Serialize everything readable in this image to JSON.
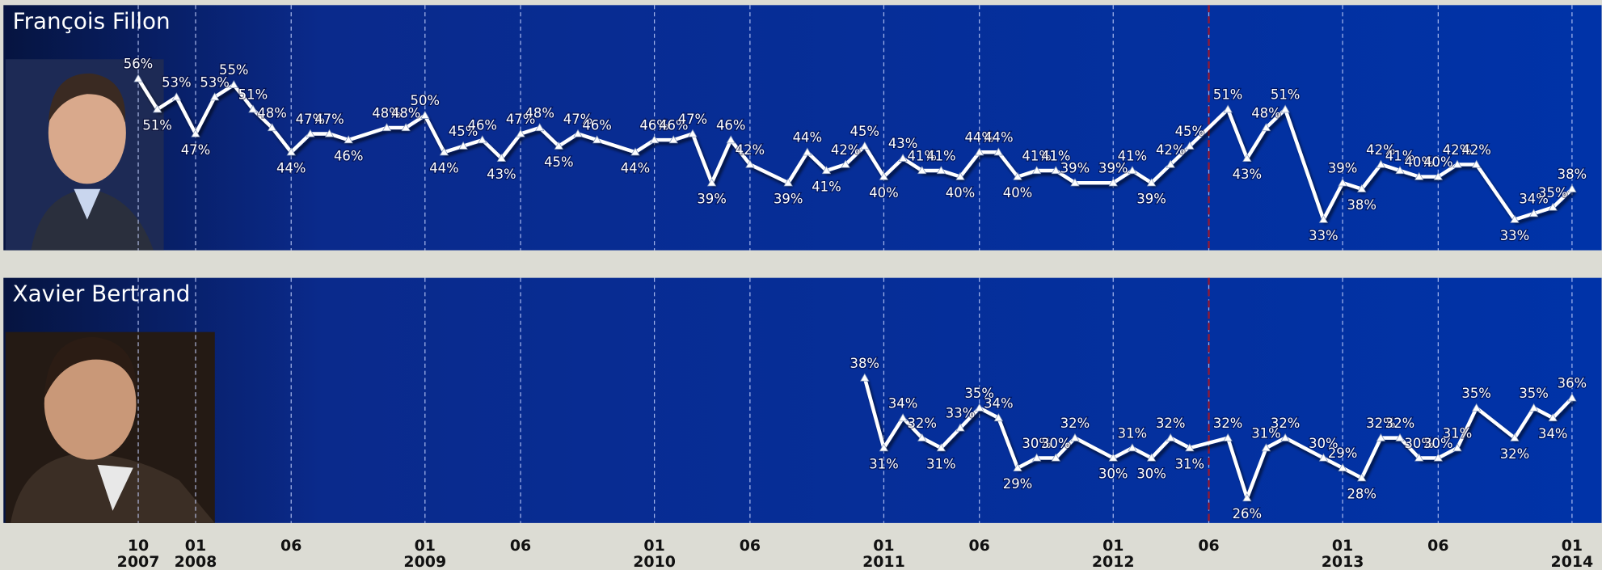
{
  "chart_data": [
    {
      "type": "line",
      "title": "François Fillon",
      "x": [
        "2007-10",
        "2007-11",
        "2007-12",
        "2008-01",
        "2008-02",
        "2008-03",
        "2008-04",
        "2008-05",
        "2008-06",
        "2008-07",
        "2008-08",
        "2008-09",
        "2008-11",
        "2008-12",
        "2009-01",
        "2009-02",
        "2009-03",
        "2009-04",
        "2009-05",
        "2009-06",
        "2009-07",
        "2009-08",
        "2009-09",
        "2009-10",
        "2009-12",
        "2010-01",
        "2010-02",
        "2010-03",
        "2010-04",
        "2010-05",
        "2010-06",
        "2010-08",
        "2010-09",
        "2010-10",
        "2010-11",
        "2010-12",
        "2011-01",
        "2011-02",
        "2011-03",
        "2011-04",
        "2011-05",
        "2011-06",
        "2011-07",
        "2011-08",
        "2011-09",
        "2011-10",
        "2011-11",
        "2012-01",
        "2012-02",
        "2012-03",
        "2012-04",
        "2012-05",
        "2012-07",
        "2012-08",
        "2012-09",
        "2012-10",
        "2012-12",
        "2013-01",
        "2013-02",
        "2013-03",
        "2013-04",
        "2013-05",
        "2013-06",
        "2013-07",
        "2013-08",
        "2013-10",
        "2013-11",
        "2013-12",
        "2014-01"
      ],
      "series": [
        {
          "color": "#ffffff",
          "values": [
            56,
            51,
            53,
            47,
            53,
            55,
            51,
            48,
            44,
            47,
            47,
            46,
            48,
            48,
            50,
            44,
            45,
            46,
            43,
            47,
            48,
            45,
            47,
            46,
            44,
            46,
            46,
            47,
            39,
            46,
            42,
            39,
            44,
            41,
            42,
            45,
            40,
            43,
            41,
            41,
            40,
            44,
            44,
            40,
            41,
            41,
            39,
            39,
            41,
            39,
            42,
            45,
            51,
            43,
            48,
            51,
            33,
            39,
            38,
            42,
            41,
            40,
            40,
            42,
            42,
            33,
            34,
            35,
            38
          ],
          "value_labels": [
            "56%",
            "51%",
            "53%",
            "47%",
            "53%",
            "55%",
            "51%",
            "48%",
            "44%",
            "47%",
            "47%",
            "46%",
            "48%",
            "48%",
            "50%",
            "44%",
            "45%",
            "46%",
            "43%",
            "47%",
            "48%",
            "45%",
            "47%",
            "46%",
            "44%",
            "46%",
            "46%",
            "47%",
            "39%",
            "46%",
            "42%",
            "39%",
            "44%",
            "41%",
            "42%",
            "45%",
            "40%",
            "43%",
            "41%",
            "41%",
            "40%",
            "44%",
            "44%",
            "40%",
            "41%",
            "41%",
            "39%",
            "39%",
            "41%",
            "39%",
            "42%",
            "45%",
            "51%",
            "43%",
            "48%",
            "51%",
            "33%",
            "39%",
            "38%",
            "42%",
            "41%",
            "40%",
            "40%",
            "42%",
            "42%",
            "33%",
            "34%",
            "35%",
            "38%"
          ]
        }
      ],
      "ylim": [
        28,
        68
      ],
      "xlim": [
        "2007-10",
        "2014-01"
      ],
      "vline": "2012-06",
      "vline_color": "#8b1a3a"
    },
    {
      "type": "line",
      "title": "Xavier Bertrand",
      "x": [
        "2010-12",
        "2011-01",
        "2011-02",
        "2011-03",
        "2011-04",
        "2011-05",
        "2011-06",
        "2011-07",
        "2011-08",
        "2011-09",
        "2011-10",
        "2011-11",
        "2012-01",
        "2012-02",
        "2012-03",
        "2012-04",
        "2012-05",
        "2012-07",
        "2012-08",
        "2012-09",
        "2012-10",
        "2012-12",
        "2013-01",
        "2013-02",
        "2013-03",
        "2013-04",
        "2013-05",
        "2013-06",
        "2013-07",
        "2013-08",
        "2013-10",
        "2013-11",
        "2013-12",
        "2014-01"
      ],
      "series": [
        {
          "color": "#ffffff",
          "values": [
            38,
            31,
            34,
            32,
            31,
            33,
            35,
            34,
            29,
            30,
            30,
            32,
            30,
            31,
            30,
            32,
            31,
            32,
            26,
            31,
            32,
            30,
            29,
            28,
            32,
            32,
            30,
            30,
            31,
            35,
            32,
            35,
            34,
            36
          ],
          "value_labels": [
            "38%",
            "31%",
            "34%",
            "32%",
            "31%",
            "33%",
            "35%",
            "34%",
            "29%",
            "30%",
            "30%",
            "32%",
            "30%",
            "31%",
            "30%",
            "32%",
            "31%",
            "32%",
            "26%",
            "31%",
            "32%",
            "30%",
            "29%",
            "28%",
            "32%",
            "32%",
            "30%",
            "30%",
            "31%",
            "35%",
            "32%",
            "35%",
            "34%",
            "36%"
          ]
        }
      ],
      "ylim": [
        23.5,
        48
      ],
      "xlim": [
        "2007-10",
        "2014-01"
      ],
      "vline": "2012-06",
      "vline_color": "#8b1a3a"
    }
  ],
  "xticks": [
    {
      "value": "2007-10",
      "label": "10"
    },
    {
      "value": "2008-01",
      "label": "01"
    },
    {
      "value": "2008-06",
      "label": "06"
    },
    {
      "value": "2009-01",
      "label": "01"
    },
    {
      "value": "2009-06",
      "label": "06"
    },
    {
      "value": "2010-01",
      "label": "01"
    },
    {
      "value": "2010-06",
      "label": "06"
    },
    {
      "value": "2011-01",
      "label": "01"
    },
    {
      "value": "2011-06",
      "label": "06"
    },
    {
      "value": "2012-01",
      "label": "01"
    },
    {
      "value": "2012-06",
      "label": "06"
    },
    {
      "value": "2013-01",
      "label": "01"
    },
    {
      "value": "2013-06",
      "label": "06"
    },
    {
      "value": "2014-01",
      "label": "01"
    }
  ],
  "xtick_years": [
    {
      "value": "2007-10",
      "label": "2007"
    },
    {
      "value": "2008-01",
      "label": "2008"
    },
    {
      "value": "2009-01",
      "label": "2009"
    },
    {
      "value": "2010-01",
      "label": "2010"
    },
    {
      "value": "2011-01",
      "label": "2011"
    },
    {
      "value": "2012-01",
      "label": "2012"
    },
    {
      "value": "2013-01",
      "label": "2013"
    },
    {
      "value": "2014-01",
      "label": "2014"
    }
  ]
}
